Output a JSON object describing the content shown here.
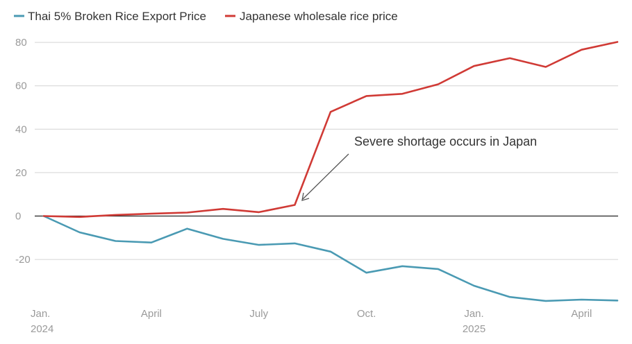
{
  "chart_data": {
    "type": "line",
    "title": "",
    "xlabel": "",
    "ylabel": "",
    "ylim": [
      -38,
      82
    ],
    "yticks": [
      -20,
      0,
      20,
      40,
      60,
      80
    ],
    "ytick_labels": [
      "-20",
      "0",
      "20",
      "40",
      "60",
      "80"
    ],
    "grid": true,
    "legend_position": "top-left",
    "x": [
      "2024-01",
      "2024-02",
      "2024-03",
      "2024-04",
      "2024-05",
      "2024-06",
      "2024-07",
      "2024-08",
      "2024-09",
      "2024-10",
      "2024-11",
      "2024-12",
      "2025-01",
      "2025-02",
      "2025-03",
      "2025-04",
      "2025-05"
    ],
    "xticks": [
      {
        "index": 0,
        "label": "Jan.",
        "sublabel": "2024"
      },
      {
        "index": 3,
        "label": "April",
        "sublabel": ""
      },
      {
        "index": 6,
        "label": "July",
        "sublabel": ""
      },
      {
        "index": 9,
        "label": "Oct.",
        "sublabel": ""
      },
      {
        "index": 12,
        "label": "Jan.",
        "sublabel": "2025"
      },
      {
        "index": 15,
        "label": "April",
        "sublabel": ""
      }
    ],
    "series": [
      {
        "name": "Thai 5% Broken Rice Export Price",
        "color": "#4a9ab3",
        "values": [
          0,
          -7.5,
          -11.5,
          -12.2,
          -5.8,
          -10.5,
          -13.3,
          -12.6,
          -16.4,
          -26.1,
          -23.1,
          -24.4,
          -32.1,
          -37.3,
          -39.1,
          -38.5,
          -38.9
        ]
      },
      {
        "name": "Japanese wholesale rice price",
        "color": "#d03a35",
        "values": [
          0,
          -0.4,
          0.5,
          1.1,
          1.6,
          3.3,
          1.8,
          5.1,
          48.0,
          55.3,
          56.3,
          60.7,
          69.1,
          72.7,
          68.7,
          76.6,
          80.2
        ]
      }
    ],
    "annotations": [
      {
        "text": "Severe shortage occurs in Japan",
        "target_index": 7,
        "target_series": "Japanese wholesale rice price"
      }
    ]
  }
}
